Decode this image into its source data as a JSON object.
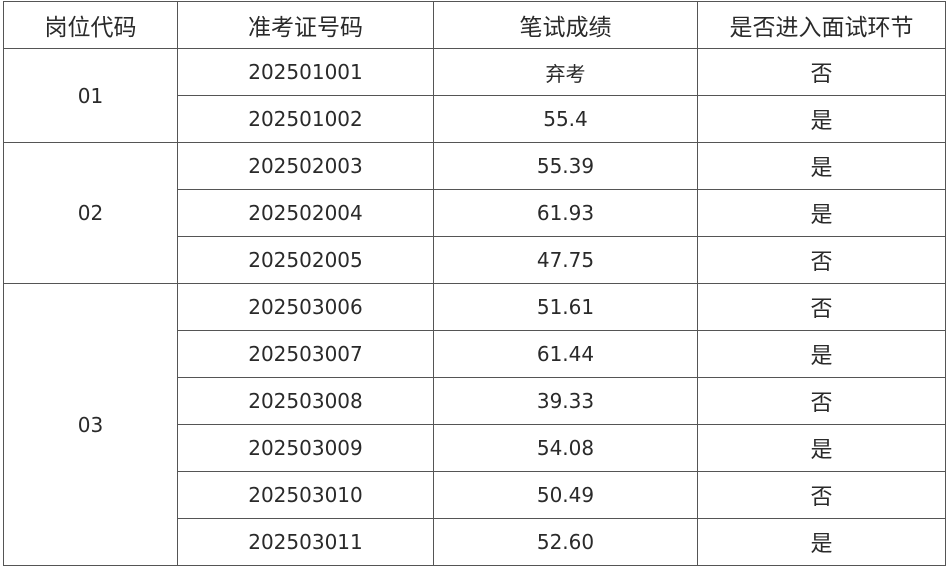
{
  "headers": [
    "岗位代码",
    "准考证号码",
    "笔试成绩",
    "是否进入面试环节"
  ],
  "groups": [
    {
      "code": "01",
      "rows": [
        {
          "id": "202501001",
          "score": "弃考",
          "interview": "否"
        },
        {
          "id": "202501002",
          "score": "55.4",
          "interview": "是"
        }
      ]
    },
    {
      "code": "02",
      "rows": [
        {
          "id": "202502003",
          "score": "55.39",
          "interview": "是"
        },
        {
          "id": "202502004",
          "score": "61.93",
          "interview": "是"
        },
        {
          "id": "202502005",
          "score": "47.75",
          "interview": "否"
        }
      ]
    },
    {
      "code": "03",
      "rows": [
        {
          "id": "202503006",
          "score": "51.61",
          "interview": "否"
        },
        {
          "id": "202503007",
          "score": "61.44",
          "interview": "是"
        },
        {
          "id": "202503008",
          "score": "39.33",
          "interview": "否"
        },
        {
          "id": "202503009",
          "score": "54.08",
          "interview": "是"
        },
        {
          "id": "202503010",
          "score": "50.49",
          "interview": "否"
        },
        {
          "id": "202503011",
          "score": "52.60",
          "interview": "是"
        }
      ]
    }
  ]
}
